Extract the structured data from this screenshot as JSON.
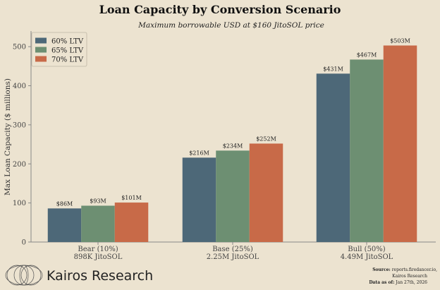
{
  "chart_data": {
    "type": "bar",
    "title": "Loan Capacity by Conversion Scenario",
    "subtitle": "Maximum borrowable USD at $160 JitoSOL price",
    "ylabel": "Max Loan Capacity ($ millions)",
    "xlabel": "",
    "ylim": [
      0,
      540
    ],
    "yticks": [
      0,
      100,
      200,
      300,
      400,
      500
    ],
    "categories": [
      {
        "line1": "Bear (10%)",
        "line2": "898K JitoSOL"
      },
      {
        "line1": "Base (25%)",
        "line2": "2.25M JitoSOL"
      },
      {
        "line1": "Bull (50%)",
        "line2": "4.49M JitoSOL"
      }
    ],
    "series": [
      {
        "name": "60% LTV",
        "color": "#4d6878",
        "values": [
          86,
          216,
          431
        ],
        "labels": [
          "$86M",
          "$216M",
          "$431M"
        ]
      },
      {
        "name": "65% LTV",
        "color": "#6d8f72",
        "values": [
          93,
          234,
          467
        ],
        "labels": [
          "$93M",
          "$234M",
          "$467M"
        ]
      },
      {
        "name": "70% LTV",
        "color": "#c86a48",
        "values": [
          101,
          252,
          503
        ],
        "labels": [
          "$101M",
          "$252M",
          "$503M"
        ]
      }
    ],
    "legend_position": "top-left",
    "grid": false
  },
  "footer": {
    "brand": "Kairos Research",
    "source_label": "Source:",
    "source_value": "reports.firedancer.io,",
    "source_line2": "Kairos Research",
    "date_label": "Data as of:",
    "date_value": "Jan 27th, 2026"
  }
}
